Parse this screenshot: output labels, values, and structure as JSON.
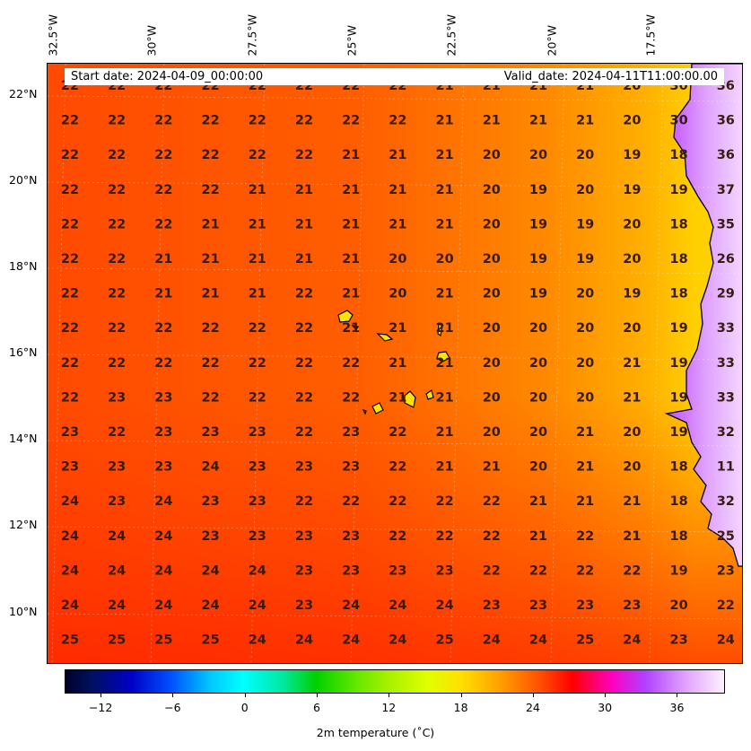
{
  "map": {
    "longitude_labels": [
      "32.5°W",
      "30°W",
      "27.5°W",
      "25°W",
      "22.5°W",
      "20°W",
      "17.5°W"
    ],
    "latitude_labels": [
      "22°N",
      "20°N",
      "18°N",
      "16°N",
      "14°N",
      "12°N",
      "10°N"
    ],
    "start_date": "Start date: 2024-04-09_00:00:00",
    "valid_date": "Valid_date: 2024-04-11T11:00:00.00",
    "colors": {
      "ocean_warm": "#ff3c00",
      "ocean_mid": "#ff6a00",
      "coast_cool": "#ffc800",
      "land_hot": "#b040ff"
    },
    "values": [
      [
        "22",
        "22",
        "22",
        "22",
        "22",
        "22",
        "22",
        "22",
        "21",
        "21",
        "21",
        "21",
        "20",
        "30",
        "36"
      ],
      [
        "22",
        "22",
        "22",
        "22",
        "22",
        "22",
        "22",
        "22",
        "21",
        "21",
        "21",
        "21",
        "20",
        "30",
        "36"
      ],
      [
        "22",
        "22",
        "22",
        "22",
        "22",
        "22",
        "21",
        "21",
        "21",
        "20",
        "20",
        "20",
        "19",
        "18",
        "36"
      ],
      [
        "22",
        "22",
        "22",
        "22",
        "21",
        "21",
        "21",
        "21",
        "21",
        "20",
        "19",
        "20",
        "19",
        "19",
        "37"
      ],
      [
        "22",
        "22",
        "22",
        "21",
        "21",
        "21",
        "21",
        "21",
        "21",
        "20",
        "19",
        "19",
        "20",
        "18",
        "35"
      ],
      [
        "22",
        "22",
        "21",
        "21",
        "21",
        "21",
        "21",
        "20",
        "20",
        "20",
        "19",
        "19",
        "20",
        "18",
        "26"
      ],
      [
        "22",
        "22",
        "21",
        "21",
        "21",
        "22",
        "21",
        "20",
        "21",
        "20",
        "19",
        "20",
        "19",
        "18",
        "29"
      ],
      [
        "22",
        "22",
        "22",
        "22",
        "22",
        "22",
        "21",
        "21",
        "21",
        "20",
        "20",
        "20",
        "20",
        "19",
        "33"
      ],
      [
        "22",
        "22",
        "22",
        "22",
        "22",
        "22",
        "22",
        "21",
        "21",
        "20",
        "20",
        "20",
        "21",
        "19",
        "33"
      ],
      [
        "22",
        "23",
        "23",
        "22",
        "22",
        "22",
        "22",
        "21",
        "21",
        "20",
        "20",
        "20",
        "21",
        "19",
        "33"
      ],
      [
        "23",
        "22",
        "23",
        "23",
        "23",
        "22",
        "23",
        "22",
        "21",
        "20",
        "20",
        "21",
        "20",
        "19",
        "32"
      ],
      [
        "23",
        "23",
        "23",
        "24",
        "23",
        "23",
        "23",
        "22",
        "21",
        "21",
        "20",
        "21",
        "20",
        "18",
        "11"
      ],
      [
        "24",
        "23",
        "24",
        "23",
        "23",
        "22",
        "22",
        "22",
        "22",
        "22",
        "21",
        "21",
        "21",
        "18",
        "32"
      ],
      [
        "24",
        "24",
        "24",
        "23",
        "23",
        "23",
        "23",
        "22",
        "22",
        "22",
        "21",
        "22",
        "21",
        "18",
        "25"
      ],
      [
        "24",
        "24",
        "24",
        "24",
        "24",
        "23",
        "23",
        "23",
        "23",
        "22",
        "22",
        "22",
        "22",
        "19",
        "23"
      ],
      [
        "24",
        "24",
        "24",
        "24",
        "24",
        "23",
        "24",
        "24",
        "24",
        "23",
        "23",
        "23",
        "23",
        "20",
        "22"
      ],
      [
        "25",
        "25",
        "25",
        "25",
        "24",
        "24",
        "24",
        "24",
        "25",
        "24",
        "24",
        "25",
        "24",
        "23",
        "24"
      ]
    ]
  },
  "colorbar": {
    "tick_labels": [
      "−12",
      "−6",
      "0",
      "6",
      "12",
      "18",
      "24",
      "30",
      "36"
    ],
    "tick_values": [
      -12,
      -6,
      0,
      6,
      12,
      18,
      24,
      30,
      36
    ],
    "min": -15,
    "max": 40,
    "title": "2m temperature (˚C)"
  }
}
